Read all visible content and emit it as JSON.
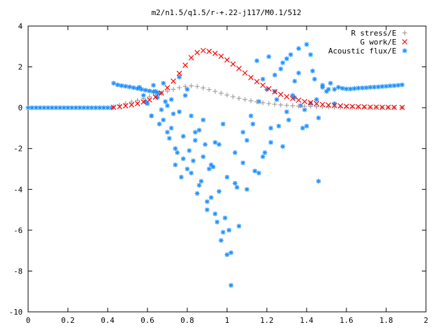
{
  "chart_data": {
    "type": "scatter",
    "title": "m2/n1.5/q1.5/r-+.22-j117/M0.1/512",
    "xlabel": "",
    "ylabel": "",
    "xlim": [
      0,
      2
    ],
    "ylim": [
      -10,
      4
    ],
    "grid": false,
    "legend_position": "top-right",
    "x_ticks": [
      "0",
      "0.2",
      "0.4",
      "0.6",
      "0.8",
      "1",
      "1.2",
      "1.4",
      "1.6",
      "1.8",
      "2"
    ],
    "y_ticks": [
      "4",
      "2",
      "0",
      "-2",
      "-4",
      "-6",
      "-8",
      "-10"
    ],
    "series": [
      {
        "name": "R stress/E",
        "marker": "plus",
        "color": "#a0a0a0",
        "x": [
          0.43,
          0.46,
          0.49,
          0.52,
          0.55,
          0.58,
          0.61,
          0.64,
          0.67,
          0.7,
          0.73,
          0.76,
          0.79,
          0.82,
          0.85,
          0.88,
          0.91,
          0.94,
          0.97,
          1.0,
          1.03,
          1.06,
          1.09,
          1.12,
          1.15,
          1.18,
          1.21,
          1.24,
          1.27,
          1.3,
          1.33,
          1.36,
          1.39,
          1.42,
          1.45,
          1.48,
          1.51,
          1.54,
          1.57,
          1.6,
          1.63,
          1.66,
          1.69,
          1.72,
          1.75,
          1.78,
          1.81,
          1.84,
          1.88
        ],
        "y": [
          0.05,
          0.12,
          0.2,
          0.28,
          0.36,
          0.45,
          0.54,
          0.63,
          0.72,
          0.81,
          0.9,
          0.98,
          1.04,
          1.07,
          1.04,
          0.97,
          0.89,
          0.8,
          0.71,
          0.62,
          0.54,
          0.46,
          0.4,
          0.34,
          0.29,
          0.24,
          0.2,
          0.17,
          0.14,
          0.12,
          0.1,
          0.08,
          0.07,
          0.06,
          0.05,
          0.04,
          0.03,
          0.03,
          0.02,
          0.02,
          0.02,
          0.01,
          0.01,
          0.01,
          0.01,
          0.01,
          0.0,
          0.0,
          0.0
        ]
      },
      {
        "name": "G work/E",
        "marker": "cross",
        "color": "#ff0000",
        "x": [
          0.43,
          0.46,
          0.49,
          0.52,
          0.55,
          0.58,
          0.61,
          0.64,
          0.67,
          0.7,
          0.73,
          0.76,
          0.79,
          0.82,
          0.85,
          0.88,
          0.91,
          0.94,
          0.97,
          1.0,
          1.03,
          1.06,
          1.09,
          1.12,
          1.15,
          1.18,
          1.21,
          1.24,
          1.27,
          1.3,
          1.33,
          1.36,
          1.39,
          1.42,
          1.45,
          1.48,
          1.51,
          1.54,
          1.57,
          1.6,
          1.63,
          1.66,
          1.69,
          1.72,
          1.75,
          1.78,
          1.81,
          1.84,
          1.88
        ],
        "y": [
          0.02,
          0.05,
          0.09,
          0.14,
          0.2,
          0.28,
          0.38,
          0.52,
          0.72,
          0.98,
          1.3,
          1.68,
          2.08,
          2.45,
          2.7,
          2.8,
          2.76,
          2.66,
          2.52,
          2.34,
          2.14,
          1.92,
          1.7,
          1.48,
          1.28,
          1.1,
          0.93,
          0.78,
          0.65,
          0.54,
          0.45,
          0.37,
          0.3,
          0.25,
          0.2,
          0.16,
          0.13,
          0.11,
          0.09,
          0.07,
          0.06,
          0.05,
          0.04,
          0.03,
          0.03,
          0.02,
          0.02,
          0.02,
          0.01
        ]
      },
      {
        "name": "Acoustic flux/E",
        "marker": "star",
        "color": "#1e90ff",
        "x": [
          0.0,
          0.02,
          0.04,
          0.06,
          0.08,
          0.1,
          0.12,
          0.14,
          0.16,
          0.18,
          0.2,
          0.22,
          0.24,
          0.26,
          0.28,
          0.3,
          0.32,
          0.34,
          0.36,
          0.38,
          0.4,
          0.42,
          0.43,
          0.45,
          0.47,
          0.49,
          0.51,
          0.53,
          0.55,
          0.57,
          0.59,
          0.61,
          0.63,
          0.65,
          0.58,
          0.6,
          0.62,
          0.64,
          0.66,
          0.68,
          0.7,
          0.72,
          0.74,
          0.76,
          0.78,
          0.8,
          0.82,
          0.84,
          0.86,
          0.88,
          0.9,
          0.92,
          0.94,
          0.96,
          0.98,
          1.0,
          1.02,
          1.04,
          1.06,
          1.08,
          1.1,
          1.12,
          1.14,
          1.16,
          1.18,
          1.2,
          1.22,
          1.24,
          1.26,
          1.28,
          1.3,
          1.32,
          1.34,
          1.36,
          1.38,
          1.4,
          1.42,
          1.44,
          1.46,
          1.48,
          1.5,
          1.52,
          1.54,
          1.56,
          1.58,
          1.6,
          1.62,
          1.64,
          1.66,
          1.68,
          1.7,
          1.72,
          1.74,
          1.76,
          1.78,
          1.8,
          1.82,
          1.84,
          1.86,
          1.88,
          0.72,
          0.75,
          0.78,
          0.8,
          0.83,
          0.85,
          0.87,
          0.9,
          0.92,
          0.95,
          0.97,
          1.0,
          1.02,
          0.79,
          0.82,
          0.86,
          0.89,
          0.93,
          0.96,
          0.99,
          1.01,
          1.04,
          0.68,
          0.71,
          0.74,
          0.77,
          0.81,
          0.84,
          0.88,
          0.91,
          0.94,
          0.98,
          1.05,
          1.08,
          1.1,
          1.13,
          1.16,
          1.19,
          1.22,
          1.25,
          1.28,
          1.31,
          1.34,
          1.37,
          1.4,
          1.43,
          1.46,
          0.63,
          0.66,
          0.69,
          0.73,
          0.76,
          1.15,
          1.18,
          1.21,
          1.24,
          1.27,
          1.3,
          1.33,
          1.36,
          1.39,
          1.42,
          1.45,
          1.48,
          1.51,
          1.54,
          0.56,
          0.59,
          0.62,
          0.65,
          0.67,
          0.7
        ],
        "y": [
          0.0,
          0.0,
          0.0,
          0.0,
          0.0,
          0.0,
          0.0,
          0.0,
          0.0,
          0.0,
          0.0,
          0.0,
          0.0,
          0.0,
          0.0,
          0.0,
          0.0,
          0.0,
          0.0,
          0.0,
          0.0,
          0.0,
          1.2,
          1.12,
          1.08,
          1.05,
          1.02,
          0.98,
          0.94,
          0.9,
          0.86,
          0.82,
          0.78,
          0.74,
          0.6,
          0.2,
          -0.4,
          0.8,
          -0.8,
          1.2,
          -1.2,
          0.4,
          -2.0,
          -0.2,
          -2.5,
          0.9,
          -3.2,
          -1.6,
          -3.8,
          -0.6,
          -4.6,
          -2.8,
          -5.2,
          -1.8,
          -6.1,
          -3.4,
          -7.1,
          -2.2,
          -5.8,
          -1.2,
          -4.0,
          -0.4,
          -3.1,
          0.3,
          -2.4,
          0.9,
          -1.7,
          1.6,
          -0.9,
          2.2,
          -0.2,
          2.6,
          0.5,
          2.9,
          -1.0,
          3.1,
          0.2,
          1.4,
          -0.5,
          1.0,
          0.8,
          1.2,
          0.9,
          1.0,
          0.95,
          0.92,
          0.92,
          0.94,
          0.96,
          0.97,
          0.98,
          1.0,
          1.01,
          1.02,
          1.04,
          1.05,
          1.07,
          1.08,
          1.1,
          1.12,
          -1.0,
          -2.2,
          -1.4,
          -3.0,
          -2.6,
          -4.2,
          -3.6,
          -5.0,
          -4.4,
          -5.6,
          -6.5,
          -7.2,
          -8.7,
          0.6,
          -0.4,
          -1.1,
          -1.8,
          -2.9,
          -4.1,
          -5.4,
          -6.0,
          -3.7,
          -0.6,
          -1.5,
          -2.8,
          -3.4,
          -2.1,
          -1.2,
          -2.4,
          -3.0,
          -1.7,
          -0.8,
          -3.9,
          -2.7,
          -1.6,
          -0.8,
          -3.2,
          -2.2,
          -1.0,
          0.4,
          -1.9,
          -0.6,
          1.3,
          0.1,
          -0.9,
          1.8,
          -3.6,
          1.1,
          0.7,
          0.3,
          -0.3,
          1.5,
          2.3,
          1.4,
          2.5,
          0.8,
          1.9,
          2.4,
          0.6,
          1.7,
          -0.1,
          2.6,
          0.4,
          1.1,
          0.9,
          0.2,
          1.0,
          0.3,
          -0.4,
          0.5,
          -0.1,
          0.1
        ]
      }
    ]
  }
}
